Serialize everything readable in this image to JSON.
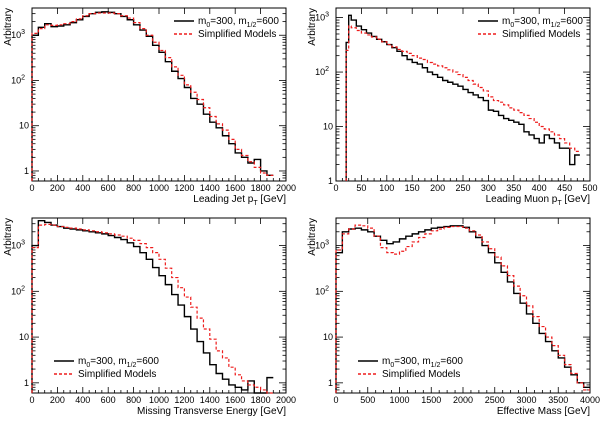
{
  "colors": {
    "series_a": "#000000",
    "series_b": "#ee1c1c"
  },
  "chart_data": [
    {
      "type": "line",
      "step": true,
      "xlabel": "Leading Jet p_T [GeV]",
      "xlabel_main": "Leading Jet p",
      "xlabel_sub": "T",
      "xlabel_tail": " [GeV]",
      "ylabel": "Arbitrary",
      "xlim": [
        0,
        2000
      ],
      "ylim": [
        0.6,
        4000
      ],
      "logy": true,
      "xticks": [
        0,
        200,
        400,
        600,
        800,
        1000,
        1200,
        1400,
        1600,
        1800,
        2000
      ],
      "yticks": [
        {
          "v": 1,
          "t": "1"
        },
        {
          "v": 10,
          "t": "10"
        },
        {
          "v": 100,
          "t": "10",
          "e": "2"
        },
        {
          "v": 1000,
          "t": "10",
          "e": "3"
        }
      ],
      "legend_position": "top-right",
      "legend": [
        {
          "parts": [
            [
              "m",
              ""
            ],
            [
              "0",
              "sub"
            ],
            [
              "=300, m",
              ""
            ],
            [
              "1/2",
              "sub"
            ],
            [
              "=600",
              ""
            ]
          ],
          "dash": false
        },
        {
          "parts": [
            [
              "Simplified Models",
              ""
            ]
          ],
          "dash": true
        }
      ],
      "bin_edges": [
        0,
        50,
        100,
        150,
        200,
        250,
        300,
        350,
        400,
        450,
        500,
        550,
        600,
        650,
        700,
        750,
        800,
        850,
        900,
        950,
        1000,
        1050,
        1100,
        1150,
        1200,
        1250,
        1300,
        1350,
        1400,
        1450,
        1500,
        1550,
        1600,
        1650,
        1700,
        1750,
        1800,
        1850,
        1900
      ],
      "series": [
        {
          "name": "m0=300, m1/2=600",
          "values": [
            1000,
            1500,
            1800,
            1550,
            1600,
            1700,
            1900,
            2200,
            2600,
            3000,
            3200,
            3300,
            3200,
            3000,
            2600,
            2200,
            1700,
            1300,
            950,
            600,
            420,
            260,
            160,
            110,
            70,
            40,
            30,
            18,
            12,
            9,
            6,
            4,
            2.5,
            2,
            1.5,
            1.8,
            1,
            0.8
          ]
        },
        {
          "name": "Simplified Models",
          "values": [
            1100,
            1400,
            1700,
            1650,
            1700,
            1800,
            2000,
            2300,
            2700,
            3000,
            3100,
            3100,
            3100,
            3000,
            2700,
            2400,
            1900,
            1400,
            1000,
            700,
            460,
            320,
            200,
            130,
            80,
            55,
            38,
            25,
            16,
            11,
            8,
            5,
            3,
            2.2,
            1.6,
            1.2,
            0.9,
            0.8
          ]
        }
      ]
    },
    {
      "type": "line",
      "step": true,
      "xlabel": "Leading Muon p_T [GeV]",
      "xlabel_main": "Leading Muon p",
      "xlabel_sub": "T",
      "xlabel_tail": " [GeV]",
      "ylabel": "Arbitrary",
      "xlim": [
        0,
        500
      ],
      "ylim": [
        1,
        1500
      ],
      "logy": true,
      "xticks": [
        0,
        50,
        100,
        150,
        200,
        250,
        300,
        350,
        400,
        450,
        500
      ],
      "yticks": [
        {
          "v": 1,
          "t": "1"
        },
        {
          "v": 10,
          "t": "10"
        },
        {
          "v": 100,
          "t": "10",
          "e": "2"
        },
        {
          "v": 1000,
          "t": "10",
          "e": "3"
        }
      ],
      "legend_position": "top-right",
      "legend": [
        {
          "parts": [
            [
              "m",
              ""
            ],
            [
              "0",
              "sub"
            ],
            [
              "=300, m",
              ""
            ],
            [
              "1/2",
              "sub"
            ],
            [
              "=600",
              ""
            ]
          ],
          "dash": false
        },
        {
          "parts": [
            [
              "Simplified Models",
              ""
            ]
          ],
          "dash": true
        }
      ],
      "bin_edges": [
        20,
        25,
        30,
        40,
        50,
        60,
        70,
        80,
        90,
        100,
        110,
        120,
        130,
        140,
        150,
        160,
        170,
        180,
        190,
        200,
        210,
        220,
        230,
        240,
        250,
        260,
        270,
        280,
        290,
        300,
        310,
        320,
        330,
        340,
        350,
        360,
        370,
        380,
        390,
        400,
        410,
        420,
        430,
        440,
        450,
        460,
        470,
        480
      ],
      "series": [
        {
          "name": "m0=300, m1/2=600",
          "values": [
            350,
            1100,
            900,
            700,
            600,
            520,
            450,
            400,
            360,
            320,
            280,
            240,
            200,
            170,
            150,
            140,
            120,
            100,
            90,
            80,
            70,
            65,
            60,
            55,
            48,
            42,
            38,
            34,
            30,
            20,
            19,
            16,
            14,
            13,
            12,
            11,
            8,
            7,
            6,
            5,
            7,
            6,
            5,
            4,
            4,
            2,
            3
          ]
        },
        {
          "name": "Simplified Models",
          "values": [
            250,
            700,
            650,
            580,
            520,
            480,
            440,
            400,
            360,
            320,
            290,
            260,
            240,
            220,
            200,
            180,
            170,
            150,
            140,
            130,
            120,
            110,
            100,
            90,
            80,
            70,
            60,
            52,
            45,
            35,
            30,
            28,
            25,
            22,
            20,
            18,
            16,
            14,
            12,
            10,
            9,
            8,
            7,
            6,
            5,
            4,
            3.5
          ]
        }
      ]
    },
    {
      "type": "line",
      "step": true,
      "xlabel": "Missing Transverse Energy [GeV]",
      "ylabel": "Arbitrary",
      "xlim": [
        0,
        2000
      ],
      "ylim": [
        0.6,
        4000
      ],
      "logy": true,
      "xticks": [
        0,
        200,
        400,
        600,
        800,
        1000,
        1200,
        1400,
        1600,
        1800,
        2000
      ],
      "yticks": [
        {
          "v": 1,
          "t": "1"
        },
        {
          "v": 10,
          "t": "10"
        },
        {
          "v": 100,
          "t": "10",
          "e": "2"
        },
        {
          "v": 1000,
          "t": "10",
          "e": "3"
        }
      ],
      "legend_position": "bottom-left",
      "legend": [
        {
          "parts": [
            [
              "m",
              ""
            ],
            [
              "0",
              "sub"
            ],
            [
              "=300, m",
              ""
            ],
            [
              "1/2",
              "sub"
            ],
            [
              "=600",
              ""
            ]
          ],
          "dash": false
        },
        {
          "parts": [
            [
              "Simplified Models",
              ""
            ]
          ],
          "dash": true
        }
      ],
      "bin_edges": [
        0,
        50,
        100,
        150,
        200,
        250,
        300,
        350,
        400,
        450,
        500,
        550,
        600,
        650,
        700,
        750,
        800,
        850,
        900,
        950,
        1000,
        1050,
        1100,
        1150,
        1200,
        1250,
        1300,
        1350,
        1400,
        1450,
        1500,
        1550,
        1600,
        1650,
        1700,
        1750,
        1800,
        1850,
        1900
      ],
      "series": [
        {
          "name": "m0=300, m1/2=600",
          "values": [
            1000,
            3500,
            3200,
            2800,
            2600,
            2400,
            2300,
            2200,
            2100,
            2000,
            1900,
            1800,
            1650,
            1500,
            1350,
            1150,
            950,
            700,
            500,
            330,
            220,
            140,
            85,
            50,
            28,
            15,
            8,
            4.5,
            2.5,
            1.6,
            1.2,
            0.9,
            0.8,
            0.7,
            1.1,
            0.6,
            0.6,
            1.3
          ]
        },
        {
          "name": "Simplified Models",
          "values": [
            900,
            2800,
            2900,
            2800,
            2600,
            2500,
            2400,
            2300,
            2200,
            2100,
            2000,
            1900,
            1800,
            1700,
            1600,
            1450,
            1300,
            1100,
            900,
            700,
            500,
            320,
            200,
            120,
            75,
            45,
            26,
            15,
            9,
            5,
            3.5,
            2.2,
            1.5,
            1.1,
            0.9,
            0.8,
            0.7,
            0.6
          ]
        }
      ]
    },
    {
      "type": "line",
      "step": true,
      "xlabel": "Effective Mass [GeV]",
      "ylabel": "Arbitrary",
      "xlim": [
        0,
        4000
      ],
      "ylim": [
        0.6,
        4000
      ],
      "logy": true,
      "xticks": [
        0,
        500,
        1000,
        1500,
        2000,
        2500,
        3000,
        3500,
        4000
      ],
      "yticks": [
        {
          "v": 1,
          "t": "1"
        },
        {
          "v": 10,
          "t": "10"
        },
        {
          "v": 100,
          "t": "10",
          "e": "2"
        },
        {
          "v": 1000,
          "t": "10",
          "e": "3"
        }
      ],
      "legend_position": "bottom-left",
      "legend": [
        {
          "parts": [
            [
              "m",
              ""
            ],
            [
              "0",
              "sub"
            ],
            [
              "=300, m",
              ""
            ],
            [
              "1/2",
              "sub"
            ],
            [
              "=600",
              ""
            ]
          ],
          "dash": false
        },
        {
          "parts": [
            [
              "Simplified Models",
              ""
            ]
          ],
          "dash": true
        }
      ],
      "bin_edges": [
        0,
        100,
        200,
        300,
        400,
        500,
        600,
        700,
        800,
        900,
        1000,
        1100,
        1200,
        1300,
        1400,
        1500,
        1600,
        1700,
        1800,
        1900,
        2000,
        2100,
        2200,
        2300,
        2400,
        2500,
        2600,
        2700,
        2800,
        2900,
        3000,
        3100,
        3200,
        3300,
        3400,
        3500,
        3600,
        3700,
        3800,
        3900,
        4000
      ],
      "series": [
        {
          "name": "m0=300, m1/2=600",
          "values": [
            700,
            2000,
            2300,
            2400,
            2200,
            2000,
            1600,
            1300,
            1100,
            1200,
            1400,
            1600,
            1800,
            2000,
            2200,
            2400,
            2500,
            2600,
            2700,
            2700,
            2500,
            2000,
            1500,
            1000,
            700,
            420,
            260,
            160,
            90,
            55,
            32,
            20,
            12,
            8,
            5,
            3.5,
            2.2,
            1.5,
            1,
            0.8
          ]
        },
        {
          "name": "Simplified Models",
          "values": [
            800,
            1800,
            2300,
            2800,
            2700,
            2400,
            1600,
            900,
            700,
            650,
            750,
            950,
            1200,
            1500,
            1800,
            2100,
            2300,
            2500,
            2600,
            2600,
            2400,
            2100,
            1700,
            1200,
            850,
            560,
            360,
            220,
            130,
            80,
            48,
            28,
            17,
            10,
            6.5,
            4,
            2.5,
            1.6,
            1,
            0.7
          ]
        }
      ]
    }
  ]
}
